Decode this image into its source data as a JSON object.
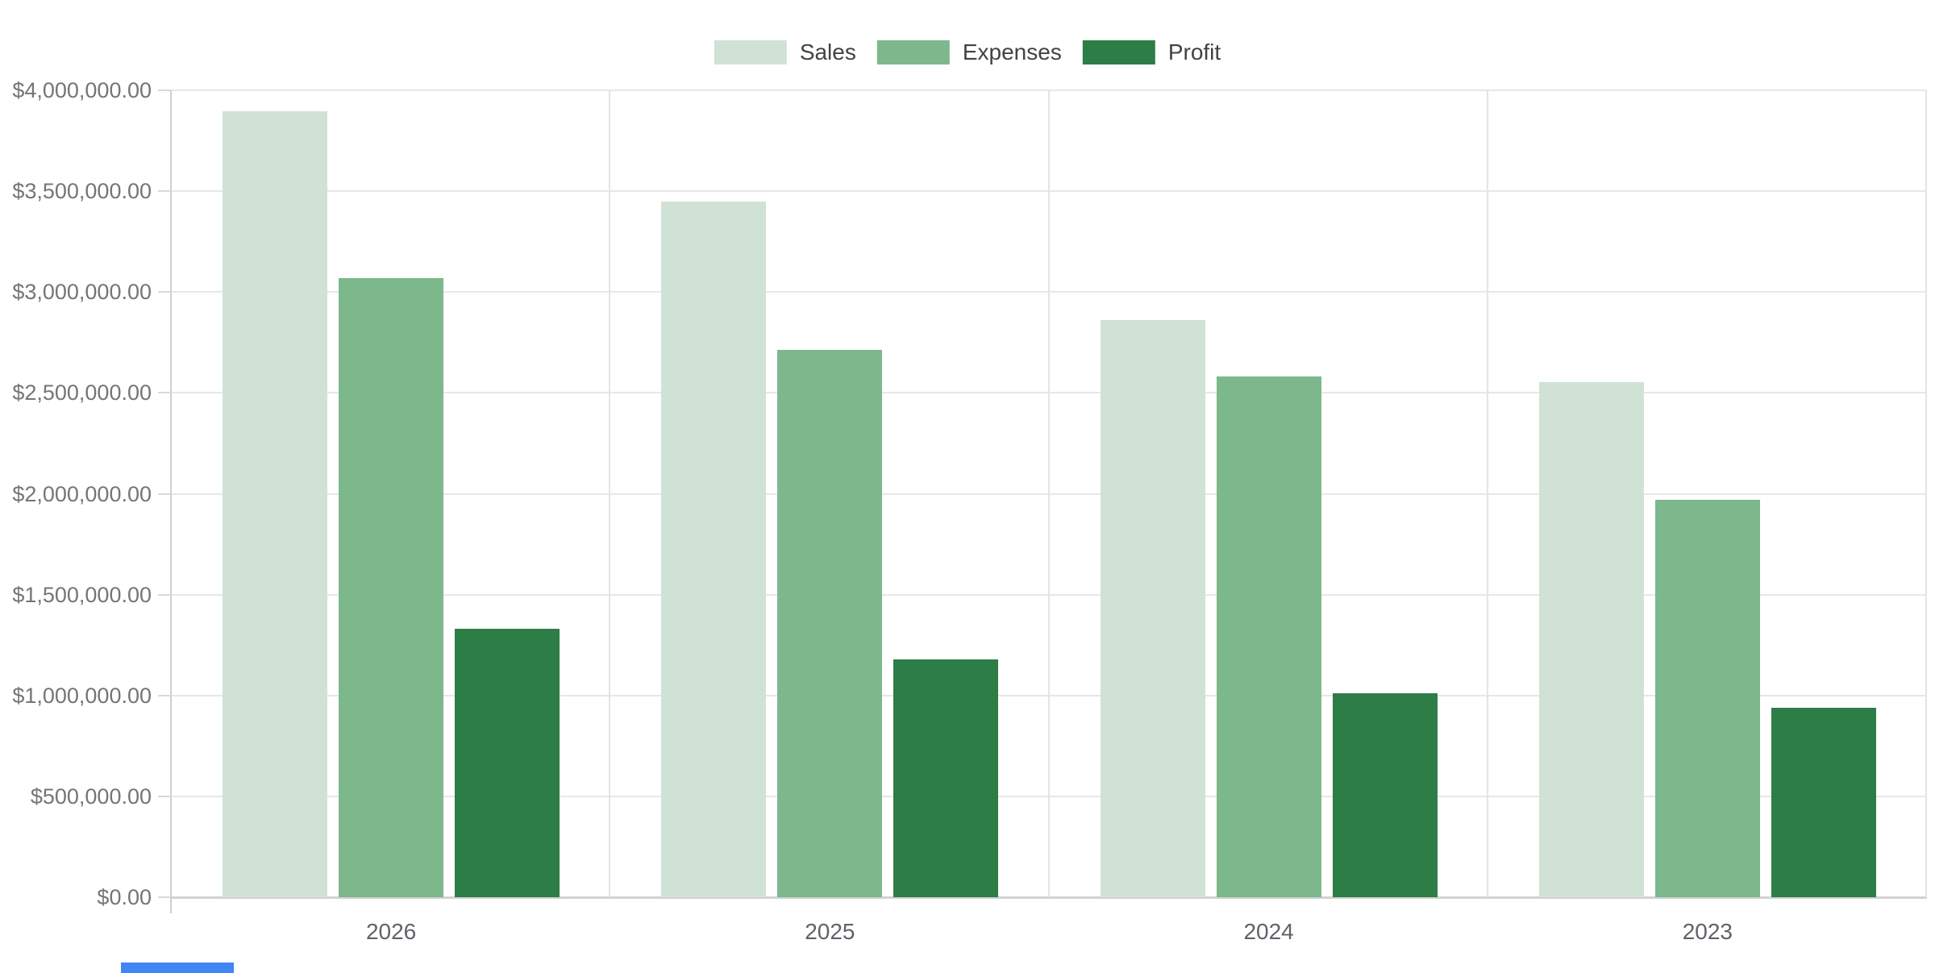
{
  "page": {
    "background": "#ffffff"
  },
  "chart_data": {
    "type": "bar",
    "title": "",
    "categories": [
      "2026",
      "2025",
      "2024",
      "2023"
    ],
    "series": [
      {
        "name": "Sales",
        "color": "#d0e2d5",
        "values": [
          3895000,
          3450000,
          2860000,
          2555000
        ]
      },
      {
        "name": "Expenses",
        "color": "#7cb88c",
        "values": [
          3070000,
          2715000,
          2580000,
          1970000
        ]
      },
      {
        "name": "Profit",
        "color": "#2d7d46",
        "values": [
          1330000,
          1180000,
          1010000,
          940000
        ]
      }
    ],
    "y_axis": {
      "min": 0,
      "max": 4000000,
      "tick_step": 500000,
      "tick_labels_top_to_bottom": [
        "$4,000,000.00",
        "$3,500,000.00",
        "$3,000,000.00",
        "$2,500,000.00",
        "$2,000,000.00",
        "$1,500,000.00",
        "$1,000,000.00",
        "$500,000.00",
        "$0.00"
      ]
    },
    "x_axis": {
      "labels": [
        "2026",
        "2025",
        "2024",
        "2023"
      ]
    },
    "legend": {
      "position": "top",
      "entries": [
        "Sales",
        "Expenses",
        "Profit"
      ]
    },
    "grid": true,
    "value_format": "currency_usd_2dp"
  },
  "colors": {
    "grid_line": "#e7e7e7",
    "category_separator": "#e4e4e4",
    "axis_line": "#cfcfcf",
    "baseline": "#d2d2d2",
    "y_label_text": "#757575",
    "x_label_text": "#5f6368",
    "legend_text": "#424242",
    "background": "#ffffff",
    "bottom_left_artifact": "#4285f4"
  }
}
